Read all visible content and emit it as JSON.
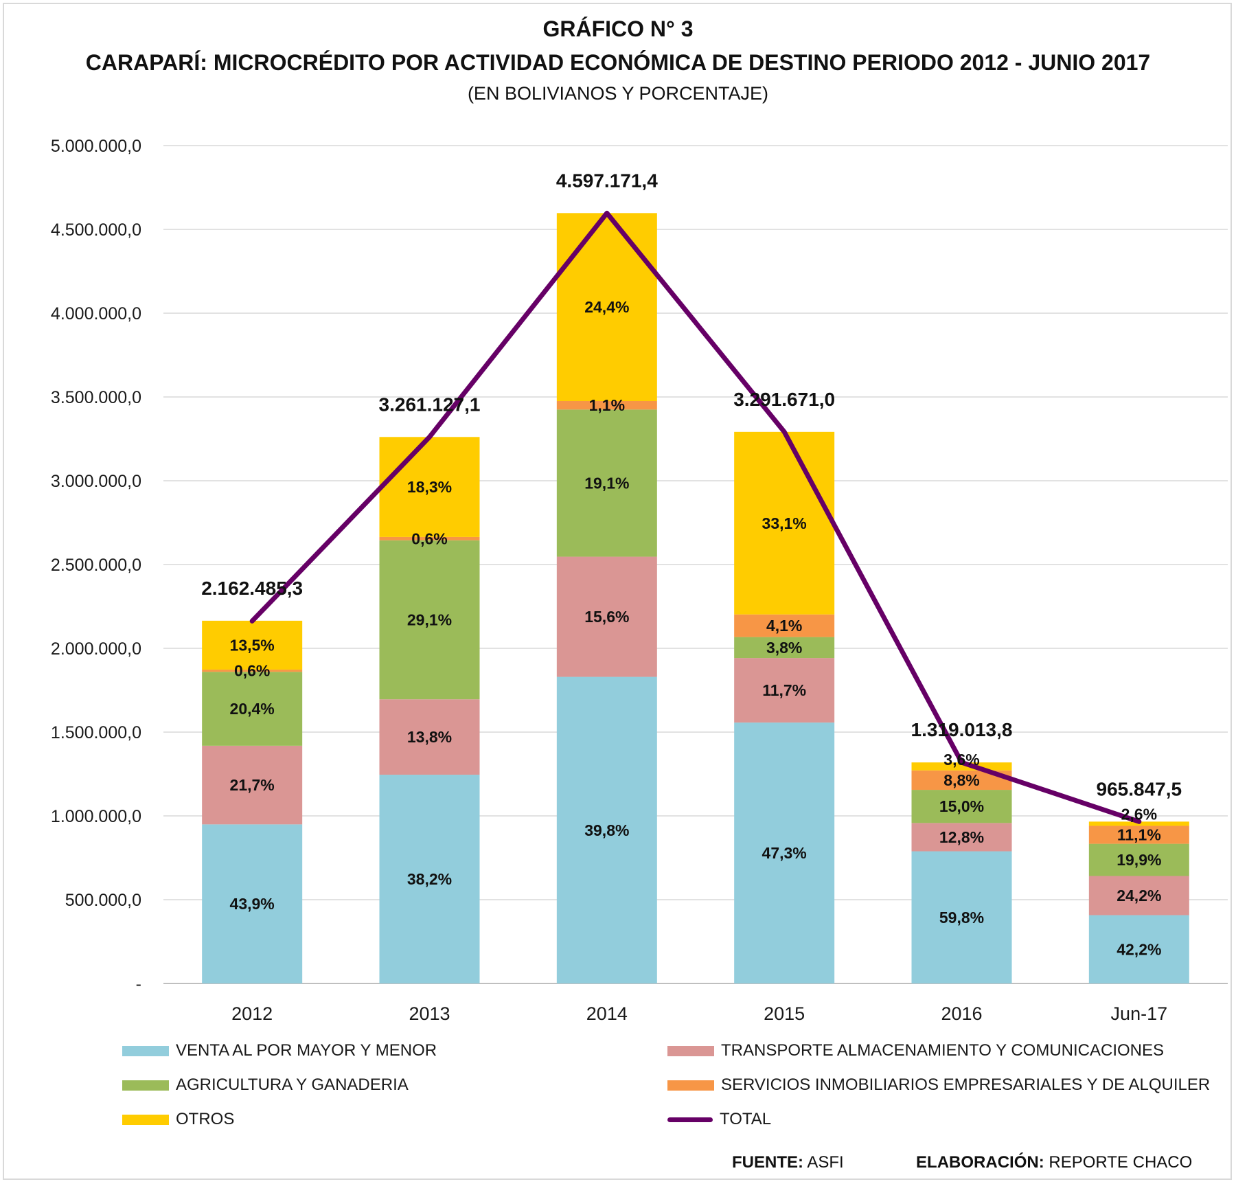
{
  "chart_data": {
    "type": "bar",
    "stacked": true,
    "title": "GRÁFICO N° 3",
    "subtitle": "CARAPARÍ: MICROCRÉDITO POR ACTIVIDAD ECONÓMICA DE DESTINO PERIODO 2012 - JUNIO 2017",
    "units_note": "(EN BOLIVIANOS Y PORCENTAJE)",
    "categories": [
      "2012",
      "2013",
      "2014",
      "2015",
      "2016",
      "Jun-17"
    ],
    "ylim": [
      0,
      5000000
    ],
    "yticks": [
      0,
      500000,
      1000000,
      1500000,
      2000000,
      2500000,
      3000000,
      3500000,
      4000000,
      4500000,
      5000000
    ],
    "ytick_labels": [
      "-",
      "500.000,0",
      "1.000.000,0",
      "1.500.000,0",
      "2.000.000,0",
      "2.500.000,0",
      "3.000.000,0",
      "3.500.000,0",
      "4.000.000,0",
      "4.500.000,0",
      "5.000.000,0"
    ],
    "grid": true,
    "legend_position": "bottom",
    "series": [
      {
        "name": "VENTA AL POR MAYOR Y MENOR",
        "color": "#92cddc",
        "values": [
          949313,
          1245751,
          1829674,
          1556960,
          788770,
          407588
        ],
        "labels": [
          "43,9%",
          "38,2%",
          "39,8%",
          "47,3%",
          "59,8%",
          "42,2%"
        ]
      },
      {
        "name": "TRANSPORTE ALMACENAMIENTO Y COMUNICACIONES",
        "color": "#da9694",
        "values": [
          469259,
          450035,
          717159,
          385126,
          168834,
          233735
        ],
        "labels": [
          "21,7%",
          "13,8%",
          "15,6%",
          "11,7%",
          "12,8%",
          "24,2%"
        ]
      },
      {
        "name": "AGRICULTURA Y GANADERIA",
        "color": "#9bbb59",
        "values": [
          441147,
          948988,
          878060,
          125084,
          197852,
          192204
        ],
        "labels": [
          "20,4%",
          "29,1%",
          "19,1%",
          "3,8%",
          "15,0%",
          "19,9%"
        ]
      },
      {
        "name": "SERVICIOS INMOBILIARIOS EMPRESARIALES Y DE ALQUILER",
        "color": "#f79646",
        "values": [
          12975,
          19567,
          50569,
          134959,
          116073,
          107209
        ],
        "labels": [
          "0,6%",
          "0,6%",
          "1,1%",
          "4,1%",
          "8,8%",
          "11,1%"
        ]
      },
      {
        "name": "OTROS",
        "color": "#ffcc00",
        "values": [
          291936,
          596786,
          1121710,
          1089543,
          47484,
          25112
        ],
        "labels": [
          "13,5%",
          "18,3%",
          "24,4%",
          "33,1%",
          "3,6%",
          "2,6%"
        ]
      }
    ],
    "total": {
      "name": "TOTAL",
      "color": "#660066",
      "values": [
        2162485.3,
        3261127.1,
        4597171.4,
        3291671.0,
        1319013.8,
        965847.5
      ],
      "labels": [
        "2.162.485,3",
        "3.261.127,1",
        "4.597.171,4",
        "3.291.671,0",
        "1.319.013,8",
        "965.847,5"
      ]
    }
  },
  "footer": {
    "source_label": "FUENTE:",
    "source_value": "ASFI",
    "author_label": "ELABORACIÓN:",
    "author_value": "REPORTE CHACO"
  }
}
